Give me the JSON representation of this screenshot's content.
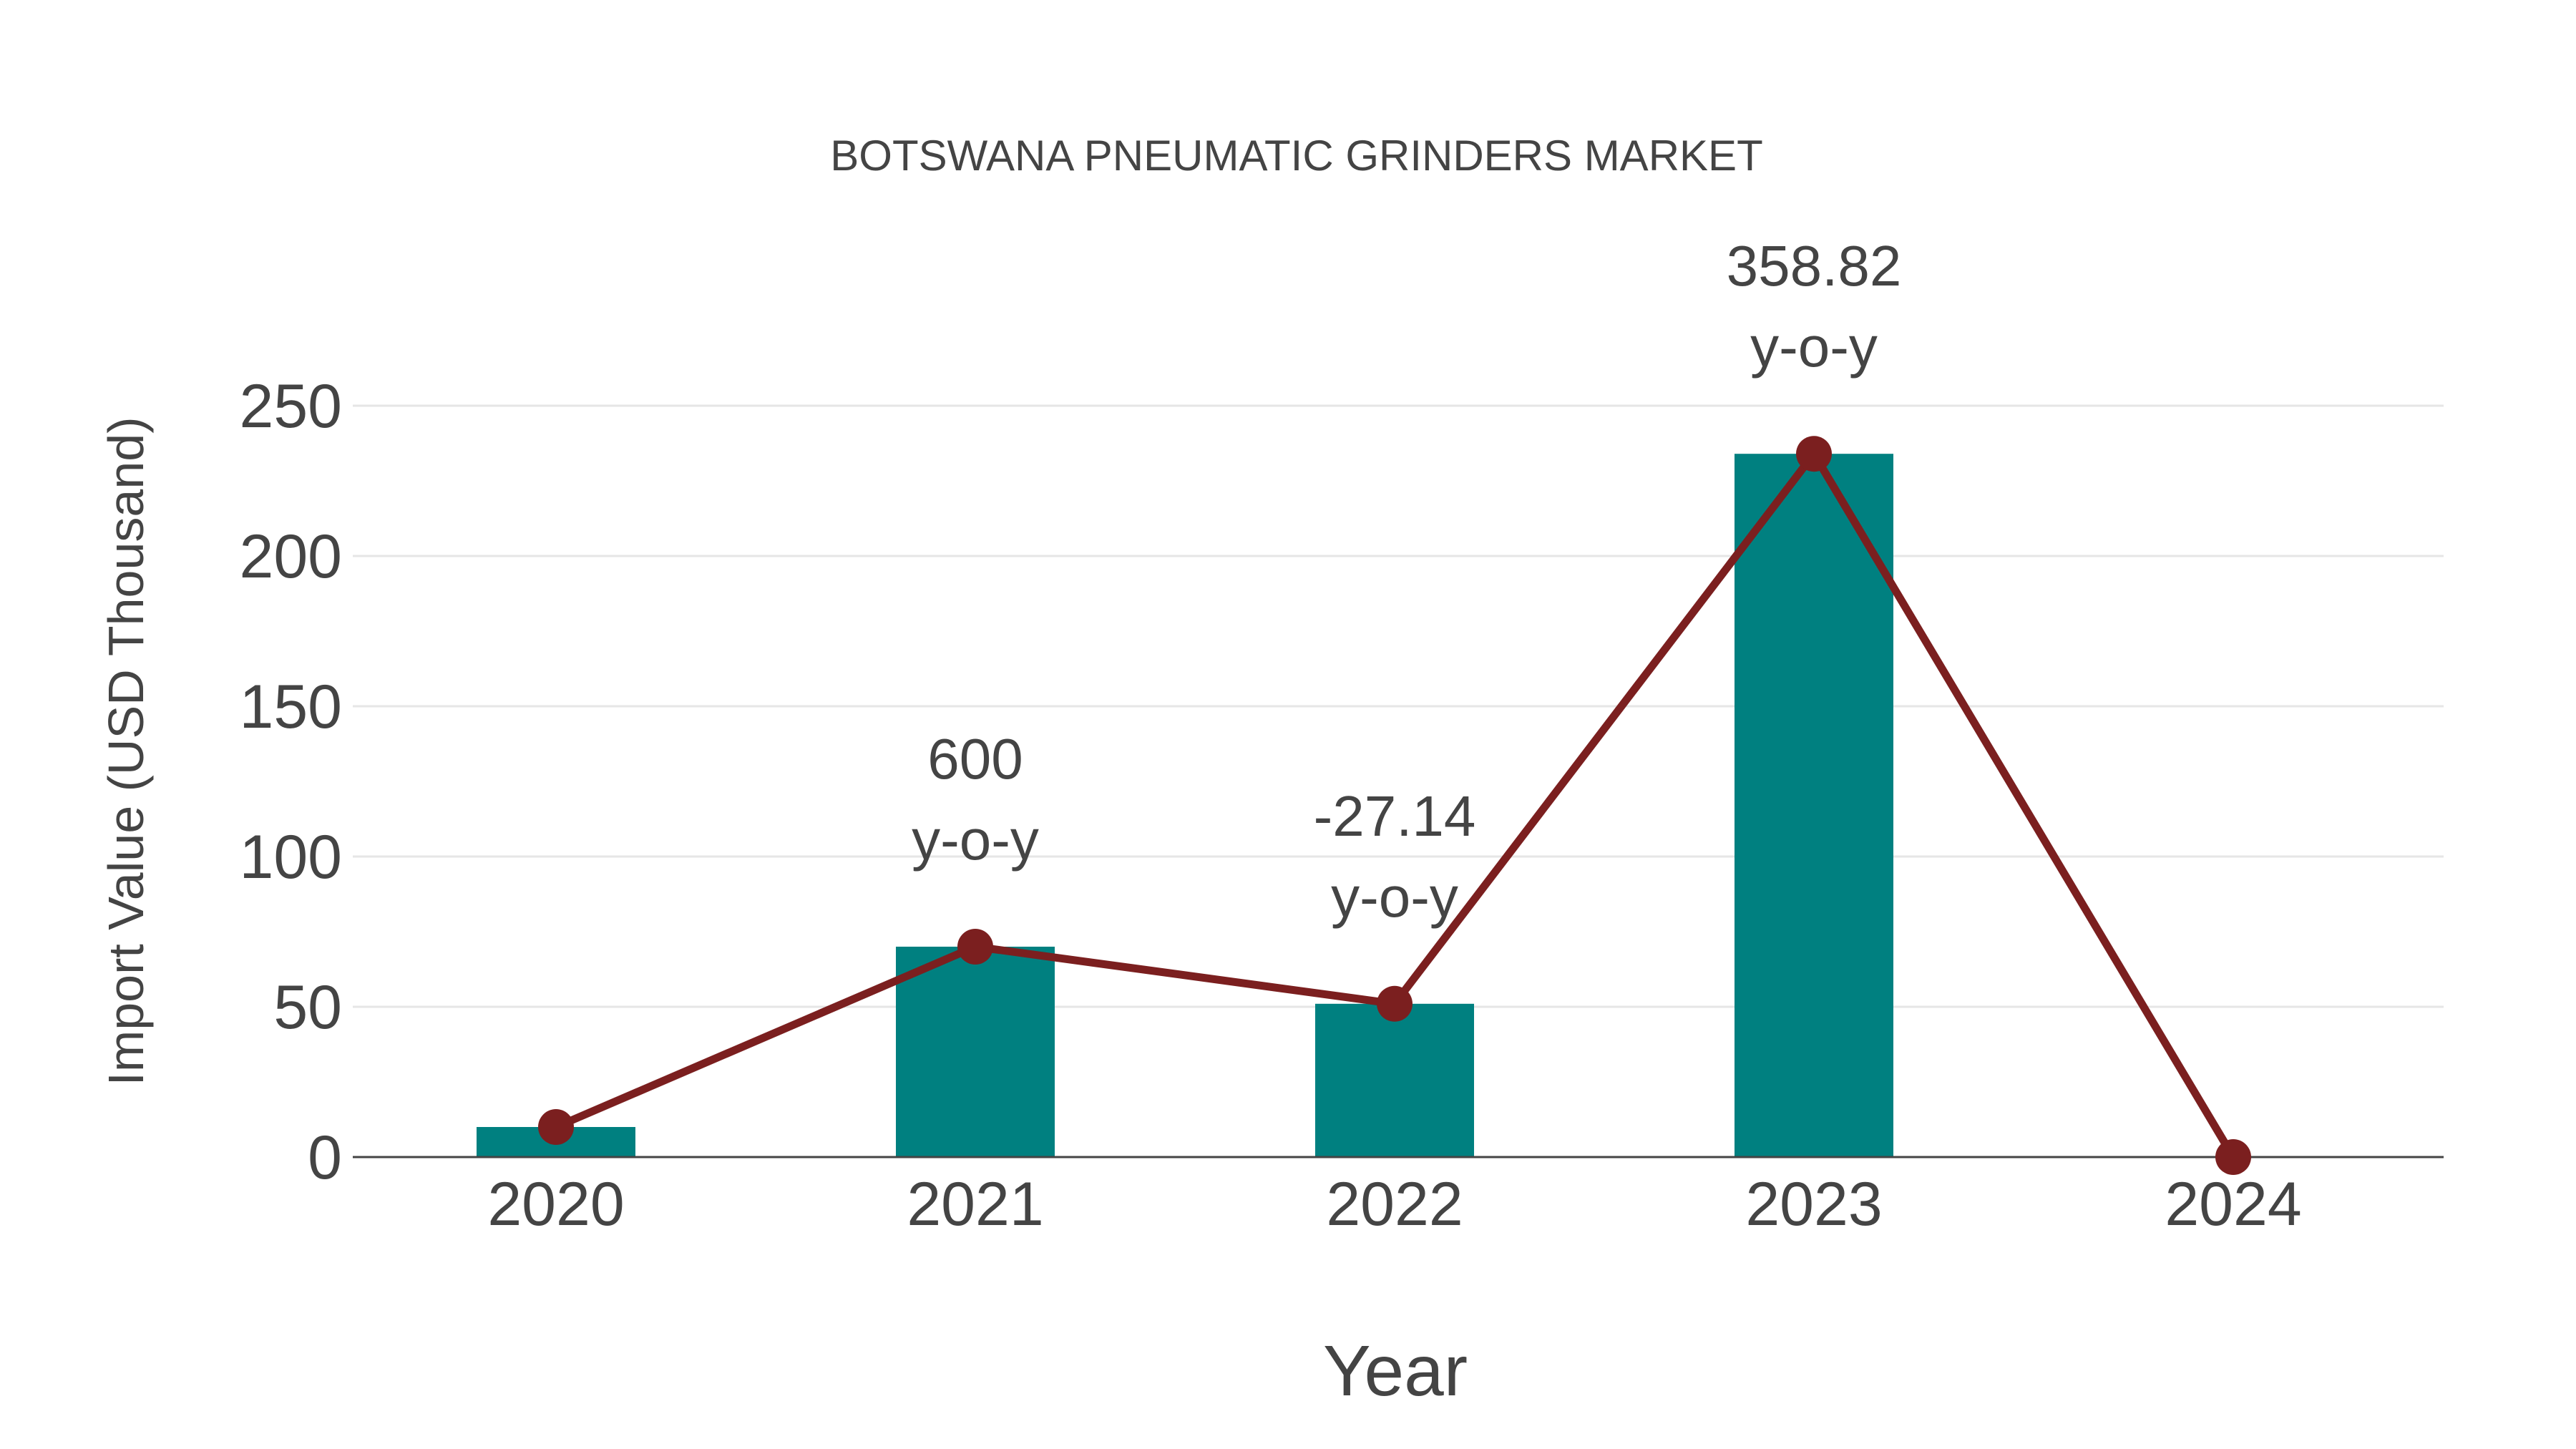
{
  "chart_data": {
    "type": "bar",
    "title": "BOTSWANA PNEUMATIC GRINDERS MARKET",
    "xlabel": "Year",
    "ylabel": "Import Value (USD Thousand)",
    "categories": [
      "2020",
      "2021",
      "2022",
      "2023",
      "2024"
    ],
    "values": [
      10,
      70,
      51,
      234,
      0
    ],
    "line_values": [
      10,
      70,
      51,
      234,
      0
    ],
    "ylim": [
      0,
      260
    ],
    "yticks": [
      0,
      50,
      100,
      150,
      200,
      250
    ],
    "grid": true,
    "annotations": [
      {
        "category": "2021",
        "value": "600",
        "suffix": "y-o-y"
      },
      {
        "category": "2022",
        "value": "-27.14",
        "suffix": "y-o-y"
      },
      {
        "category": "2023",
        "value": "358.82",
        "suffix": "y-o-y"
      }
    ],
    "colors": {
      "bar": "#008080",
      "line": "#7b1f1f",
      "text": "#444444"
    }
  }
}
